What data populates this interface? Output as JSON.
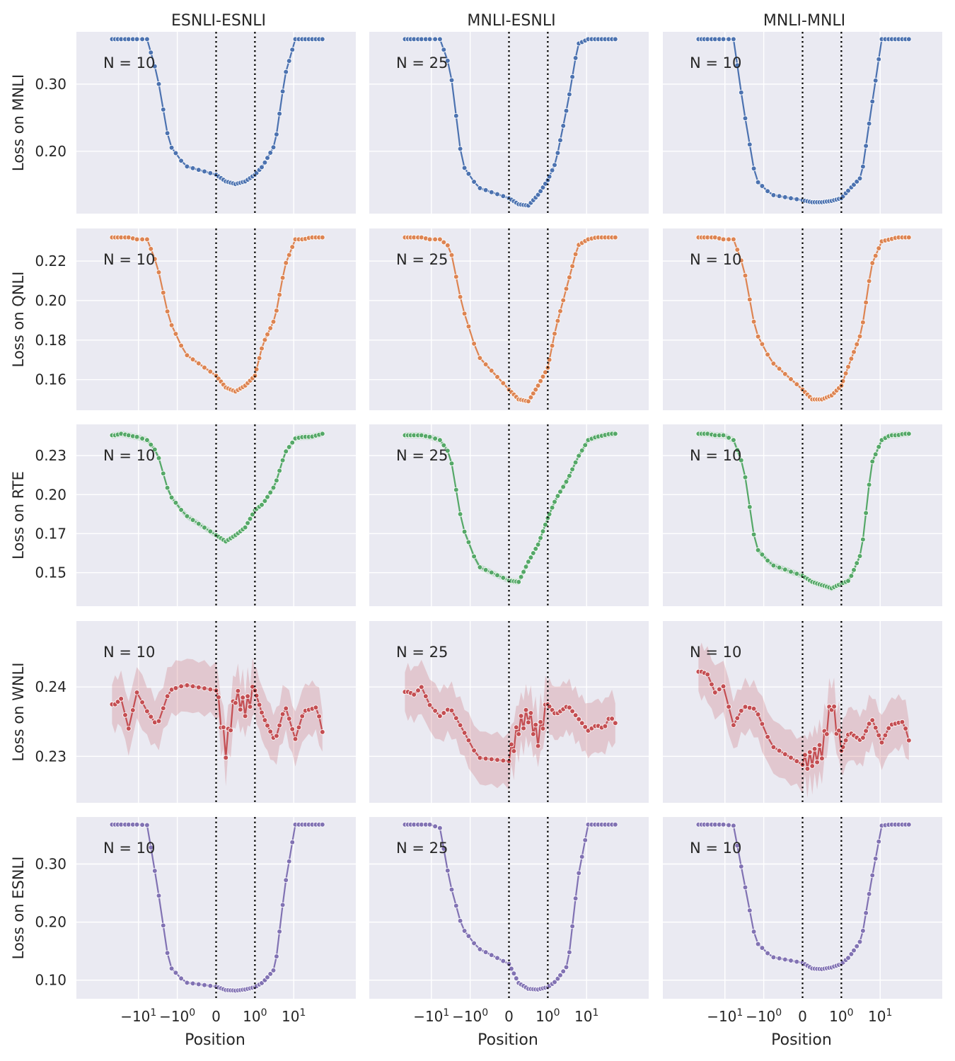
{
  "chart_data": {
    "type": "line",
    "xlabel": "Position",
    "x_scale": "symlog",
    "x_ticks": [
      "-10^1",
      "-10^0",
      "0",
      "10^0",
      "10^1"
    ],
    "vertical_lines": [
      0,
      1
    ],
    "columns": [
      "ESNLI-ESNLI",
      "MNLI-ESNLI",
      "MNLI-MNLI"
    ],
    "n_labels": [
      "N = 10",
      "N = 25",
      "N = 10"
    ],
    "rows": [
      {
        "task": "MNLI",
        "ylabel": "Loss on  MNLI",
        "color": "#4c72b0",
        "ylim": [
          0.107,
          0.378
        ],
        "yticks": [
          0.2,
          0.3
        ],
        "ytick_labels": [
          "0.20",
          "0.30"
        ],
        "band": 0.002,
        "anchors": [
          [
            [
              0.367,
              0.367,
              0.367,
              0.367,
              0.367
            ],
            [
              0.367,
              0.314,
              0.21,
              0.178,
              0.165
            ],
            [
              0.165,
              0.155,
              0.151,
              0.155,
              0.165
            ],
            [
              0.165,
              0.178,
              0.21,
              0.314,
              0.367
            ],
            [
              0.367,
              0.367,
              0.367,
              0.367,
              0.367
            ]
          ],
          [
            [
              0.367,
              0.367,
              0.367,
              0.367,
              0.367
            ],
            [
              0.367,
              0.325,
              0.18,
              0.146,
              0.13
            ],
            [
              0.13,
              0.121,
              0.119,
              0.135,
              0.157
            ],
            [
              0.157,
              0.183,
              0.272,
              0.36,
              0.367
            ],
            [
              0.367,
              0.367,
              0.367,
              0.367,
              0.367
            ]
          ],
          [
            [
              0.367,
              0.367,
              0.367,
              0.367,
              0.367
            ],
            [
              0.367,
              0.263,
              0.157,
              0.135,
              0.127
            ],
            [
              0.127,
              0.124,
              0.124,
              0.126,
              0.13
            ],
            [
              0.13,
              0.143,
              0.162,
              0.266,
              0.367
            ],
            [
              0.367,
              0.367,
              0.367,
              0.367,
              0.367
            ]
          ]
        ]
      },
      {
        "task": "QNLI",
        "ylabel": "Loss on  QNLI",
        "color": "#dd8452",
        "ylim": [
          0.1445,
          0.2365
        ],
        "yticks": [
          0.16,
          0.18,
          0.2,
          0.22
        ],
        "ytick_labels": [
          "0.16",
          "0.18",
          "0.20",
          "0.22"
        ],
        "band": 0.0008,
        "anchors": [
          [
            [
              0.232,
              0.232,
              0.232,
              0.231,
              0.231
            ],
            [
              0.231,
              0.218,
              0.19,
              0.173,
              0.162
            ],
            [
              0.162,
              0.156,
              0.154,
              0.157,
              0.162
            ],
            [
              0.162,
              0.178,
              0.191,
              0.218,
              0.231
            ],
            [
              0.231,
              0.231,
              0.232,
              0.232,
              0.232
            ]
          ],
          [
            [
              0.232,
              0.232,
              0.232,
              0.231,
              0.231
            ],
            [
              0.231,
              0.227,
              0.197,
              0.172,
              0.155
            ],
            [
              0.155,
              0.15,
              0.149,
              0.157,
              0.166
            ],
            [
              0.166,
              0.186,
              0.209,
              0.228,
              0.231
            ],
            [
              0.231,
              0.232,
              0.232,
              0.232,
              0.232
            ]
          ],
          [
            [
              0.232,
              0.232,
              0.232,
              0.231,
              0.231
            ],
            [
              0.231,
              0.217,
              0.184,
              0.169,
              0.155
            ],
            [
              0.155,
              0.15,
              0.15,
              0.152,
              0.157
            ],
            [
              0.157,
              0.168,
              0.184,
              0.218,
              0.23
            ],
            [
              0.23,
              0.231,
              0.232,
              0.232,
              0.232
            ]
          ]
        ]
      },
      {
        "task": "RTE",
        "ylabel": "Loss on  RTE",
        "color": "#55a868",
        "ylim": [
          0.1285,
          0.245
        ],
        "yticks": [
          0.15,
          0.175,
          0.2,
          0.225
        ],
        "ytick_labels": [
          "0.15",
          "0.17",
          "0.20",
          "0.23"
        ],
        "band": 0.002,
        "anchors": [
          [
            [
              0.238,
              0.239,
              0.238,
              0.237,
              0.235
            ],
            [
              0.235,
              0.227,
              0.2,
              0.187,
              0.174
            ],
            [
              0.174,
              0.17,
              0.174,
              0.179,
              0.19
            ],
            [
              0.19,
              0.194,
              0.206,
              0.227,
              0.236
            ],
            [
              0.236,
              0.237,
              0.237,
              0.238,
              0.239
            ]
          ],
          [
            [
              0.238,
              0.238,
              0.238,
              0.237,
              0.235
            ],
            [
              0.235,
              0.226,
              0.18,
              0.154,
              0.145
            ],
            [
              0.145,
              0.144,
              0.157,
              0.168,
              0.185
            ],
            [
              0.185,
              0.197,
              0.21,
              0.224,
              0.235
            ],
            [
              0.235,
              0.237,
              0.238,
              0.239,
              0.239
            ]
          ],
          [
            [
              0.239,
              0.239,
              0.238,
              0.238,
              0.235
            ],
            [
              0.235,
              0.218,
              0.166,
              0.155,
              0.148
            ],
            [
              0.148,
              0.144,
              0.142,
              0.14,
              0.143
            ],
            [
              0.143,
              0.145,
              0.163,
              0.22,
              0.235
            ],
            [
              0.235,
              0.238,
              0.238,
              0.239,
              0.239
            ]
          ]
        ]
      },
      {
        "task": "WNLI",
        "ylabel": "Loss on  WNLI",
        "color": "#c44e52",
        "ylim": [
          0.2233,
          0.2495
        ],
        "yticks": [
          0.23,
          0.24
        ],
        "ytick_labels": [
          "0.23",
          "0.24"
        ],
        "band": 0.0035,
        "anchors": [
          [
            [
              0.2375,
              0.2383,
              0.234,
              0.2392,
              0.2365
            ],
            [
              0.2365,
              0.2344,
              0.2395,
              0.2403,
              0.2395
            ],
            [
              0.2395,
              0.2308,
              0.2387,
              0.2368,
              0.2395
            ],
            [
              0.2395,
              0.2358,
              0.2322,
              0.2373,
              0.2325
            ],
            [
              0.2325,
              0.2365,
              0.2368,
              0.2371,
              0.2335
            ]
          ],
          [
            [
              0.2393,
              0.2389,
              0.24,
              0.2374,
              0.2358
            ],
            [
              0.2358,
              0.237,
              0.234,
              0.2298,
              0.2293
            ],
            [
              0.2293,
              0.2342,
              0.2359,
              0.2325,
              0.2375
            ],
            [
              0.2375,
              0.236,
              0.2373,
              0.2355,
              0.2337
            ],
            [
              0.2337,
              0.2345,
              0.234,
              0.2358,
              0.2348
            ]
          ],
          [
            [
              0.2422,
              0.2418,
              0.2392,
              0.2401,
              0.2345
            ],
            [
              0.2345,
              0.2372,
              0.2368,
              0.2315,
              0.2288
            ],
            [
              0.2288,
              0.2296,
              0.2307,
              0.2377,
              0.2308
            ],
            [
              0.2308,
              0.2335,
              0.2322,
              0.2355,
              0.232
            ],
            [
              0.232,
              0.2345,
              0.2348,
              0.235,
              0.2323
            ]
          ]
        ]
      },
      {
        "task": "ESNLI",
        "ylabel": "Loss on  ESNLI",
        "color": "#8172b3",
        "ylim": [
          0.068,
          0.381
        ],
        "yticks": [
          0.1,
          0.2,
          0.3
        ],
        "ytick_labels": [
          "0.10",
          "0.20",
          "0.30"
        ],
        "band": 0.002,
        "anchors": [
          [
            [
              0.368,
              0.368,
              0.368,
              0.368,
              0.367
            ],
            [
              0.367,
              0.264,
              0.124,
              0.096,
              0.089
            ],
            [
              0.089,
              0.083,
              0.082,
              0.084,
              0.088
            ],
            [
              0.088,
              0.096,
              0.12,
              0.264,
              0.368
            ],
            [
              0.368,
              0.368,
              0.368,
              0.368,
              0.368
            ]
          ],
          [
            [
              0.368,
              0.368,
              0.368,
              0.368,
              0.362
            ],
            [
              0.362,
              0.266,
              0.19,
              0.155,
              0.128
            ],
            [
              0.128,
              0.095,
              0.085,
              0.084,
              0.088
            ],
            [
              0.088,
              0.098,
              0.126,
              0.277,
              0.368
            ],
            [
              0.368,
              0.368,
              0.368,
              0.368,
              0.368
            ]
          ],
          [
            [
              0.368,
              0.368,
              0.368,
              0.368,
              0.366
            ],
            [
              0.366,
              0.274,
              0.166,
              0.14,
              0.13
            ],
            [
              0.13,
              0.12,
              0.119,
              0.122,
              0.128
            ],
            [
              0.128,
              0.14,
              0.17,
              0.273,
              0.366
            ],
            [
              0.366,
              0.368,
              0.368,
              0.368,
              0.368
            ]
          ]
        ]
      }
    ]
  }
}
